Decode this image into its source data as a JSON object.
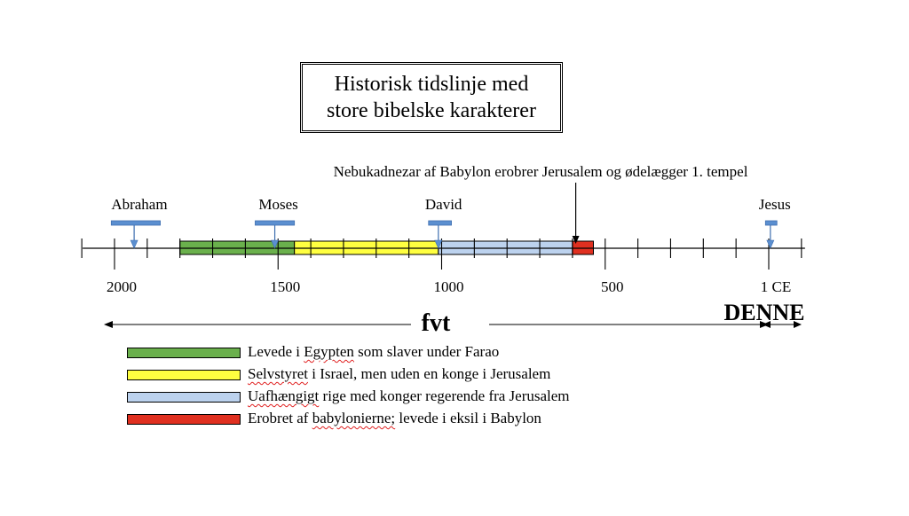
{
  "title": {
    "line1": "Historisk tidslinje med",
    "line2": "store bibelske karakterer"
  },
  "timeline": {
    "start_year": -2000,
    "end_year": 100,
    "ticks": [
      -2100,
      -2000,
      -1900,
      -1800,
      -1700,
      -1600,
      -1500,
      -1400,
      -1300,
      -1200,
      -1100,
      -1000,
      -900,
      -800,
      -700,
      -600,
      -500,
      -400,
      -300,
      -200,
      -100,
      0,
      100
    ],
    "major_ticks": [
      -2000,
      -1500,
      -1000,
      -500,
      0
    ],
    "tick_labels": [
      {
        "year": -2000,
        "text": "2000"
      },
      {
        "year": -1500,
        "text": "1500"
      },
      {
        "year": -1000,
        "text": "1000"
      },
      {
        "year": -500,
        "text": "500"
      },
      {
        "year": 0,
        "text": "1 CE"
      }
    ],
    "periods": [
      {
        "start": -1800,
        "end": -1450,
        "color": "#6ab04c",
        "legend": "Levede i Egypten som slaver under Farao"
      },
      {
        "start": -1450,
        "end": -1010,
        "color": "#ffff40",
        "legend": "Selvstyret i Israel, men uden en konge i Jerusalem"
      },
      {
        "start": -1010,
        "end": -600,
        "color": "#bcd2ee",
        "legend": "Uafhængigt rige med konger regerende fra Jerusalem"
      },
      {
        "start": -600,
        "end": -536,
        "color": "#e03020",
        "legend": "Erobret af babylonierne; levede i eksil i Babylon"
      }
    ],
    "characters": [
      {
        "name": "Abraham",
        "year": -1940,
        "span_start": -2010,
        "span_end": -1860
      },
      {
        "name": "Moses",
        "year": -1510,
        "span_start": -1570,
        "span_end": -1450
      },
      {
        "name": "David",
        "year": -1010,
        "span_start": -1040,
        "span_end": -970
      },
      {
        "name": "Jesus",
        "year": 5,
        "span_start": -10,
        "span_end": 25
      }
    ],
    "event": {
      "year": -590,
      "text": "Nebukadnezar af Babylon erobrer Jerusalem og ødelægger 1. tempel"
    },
    "era_bce": "fvt",
    "era_ce": "DENNE"
  },
  "colors": {
    "marker": "#5b8fd0",
    "marker_stroke": "#3f6fb0"
  }
}
